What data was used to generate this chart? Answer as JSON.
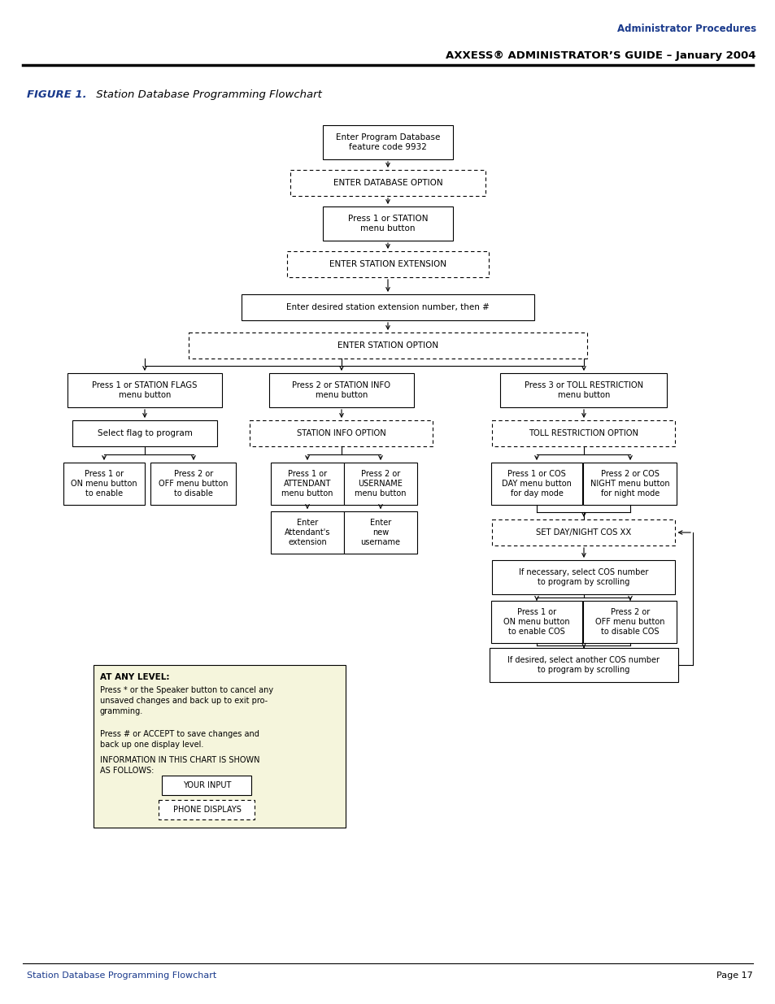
{
  "header_right_line1": "Administrator Procedures",
  "header_right_line2": "AXXESS® ADMINISTRATOR’S GUIDE – January 2004",
  "figure_label": "FIGURE 1.",
  "figure_title": " Station Database Programming Flowchart",
  "footer_left": "Station Database Programming Flowchart",
  "footer_right": "Page 17",
  "header_color": "#1a3a8c",
  "body_text_color": "#000000",
  "background_color": "#ffffff",
  "legend_bg": "#f5f5dc"
}
